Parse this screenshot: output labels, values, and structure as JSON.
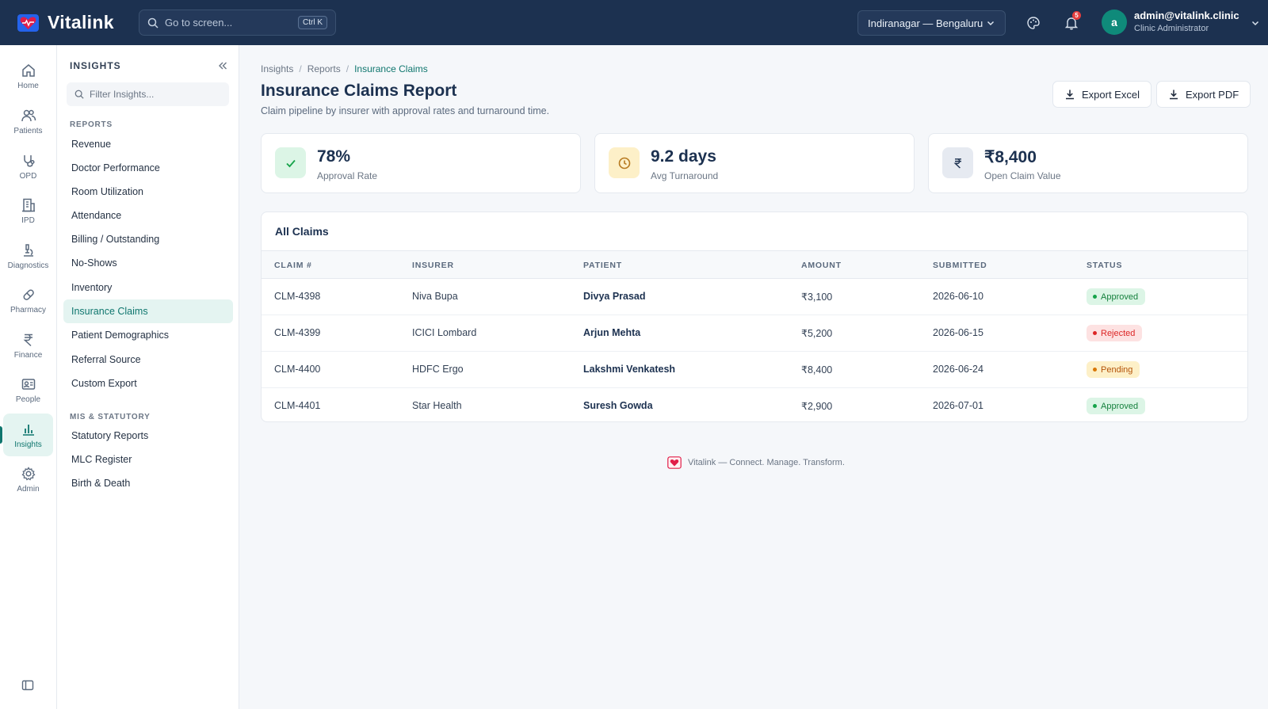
{
  "app": {
    "name": "Vitalink"
  },
  "topbar": {
    "search_placeholder": "Go to screen...",
    "search_shortcut": "Ctrl K",
    "branch": "Indiranagar — Bengaluru",
    "notification_count": "5",
    "user": {
      "initial": "a",
      "email": "admin@vitalink.clinic",
      "role": "Clinic Administrator"
    }
  },
  "rail": {
    "items": [
      {
        "label": "Home",
        "icon": "home-icon"
      },
      {
        "label": "Patients",
        "icon": "users-icon"
      },
      {
        "label": "OPD",
        "icon": "stethoscope-icon"
      },
      {
        "label": "IPD",
        "icon": "building-icon"
      },
      {
        "label": "Diagnostics",
        "icon": "microscope-icon"
      },
      {
        "label": "Pharmacy",
        "icon": "pill-icon"
      },
      {
        "label": "Finance",
        "icon": "rupee-icon"
      },
      {
        "label": "People",
        "icon": "id-card-icon"
      },
      {
        "label": "Insights",
        "icon": "bar-chart-icon",
        "active": true
      },
      {
        "label": "Admin",
        "icon": "gear-icon"
      }
    ]
  },
  "panel": {
    "title": "INSIGHTS",
    "filter_placeholder": "Filter Insights...",
    "sections": [
      {
        "label": "REPORTS",
        "items": [
          "Revenue",
          "Doctor Performance",
          "Room Utilization",
          "Attendance",
          "Billing / Outstanding",
          "No-Shows",
          "Inventory",
          "Insurance Claims",
          "Patient Demographics",
          "Referral Source",
          "Custom Export"
        ]
      },
      {
        "label": "MIS & STATUTORY",
        "items": [
          "Statutory Reports",
          "MLC Register",
          "Birth & Death"
        ]
      }
    ],
    "active_item": "Insurance Claims"
  },
  "main": {
    "breadcrumb": [
      "Insights",
      "Reports",
      "Insurance Claims"
    ],
    "title": "Insurance Claims Report",
    "subtitle": "Claim pipeline by insurer with approval rates and turnaround time.",
    "buttons": {
      "export_excel": "Export Excel",
      "export_pdf": "Export PDF"
    },
    "stats": [
      {
        "value": "78%",
        "label": "Approval Rate",
        "icon": "check-icon"
      },
      {
        "value": "9.2 days",
        "label": "Avg Turnaround",
        "icon": "clock-icon"
      },
      {
        "value": "₹8,400",
        "label": "Open Claim Value",
        "icon": "rupee-icon"
      }
    ],
    "table": {
      "title": "All Claims",
      "columns": [
        "CLAIM #",
        "INSURER",
        "PATIENT",
        "AMOUNT",
        "SUBMITTED",
        "STATUS"
      ],
      "rows": [
        {
          "claim": "CLM-4398",
          "insurer": "Niva Bupa",
          "patient": "Divya Prasad",
          "amount": "₹3,100",
          "submitted": "2026-06-10",
          "status": "Approved"
        },
        {
          "claim": "CLM-4399",
          "insurer": "ICICI Lombard",
          "patient": "Arjun Mehta",
          "amount": "₹5,200",
          "submitted": "2026-06-15",
          "status": "Rejected"
        },
        {
          "claim": "CLM-4400",
          "insurer": "HDFC Ergo",
          "patient": "Lakshmi Venkatesh",
          "amount": "₹8,400",
          "submitted": "2026-06-24",
          "status": "Pending"
        },
        {
          "claim": "CLM-4401",
          "insurer": "Star Health",
          "patient": "Suresh Gowda",
          "amount": "₹2,900",
          "submitted": "2026-07-01",
          "status": "Approved"
        }
      ]
    },
    "footer": "Vitalink — Connect. Manage. Transform."
  },
  "colors": {
    "topbar": "#1c3150",
    "accent": "#0f766e",
    "approved": "#15803d",
    "rejected": "#dc2626",
    "pending": "#b45309"
  }
}
